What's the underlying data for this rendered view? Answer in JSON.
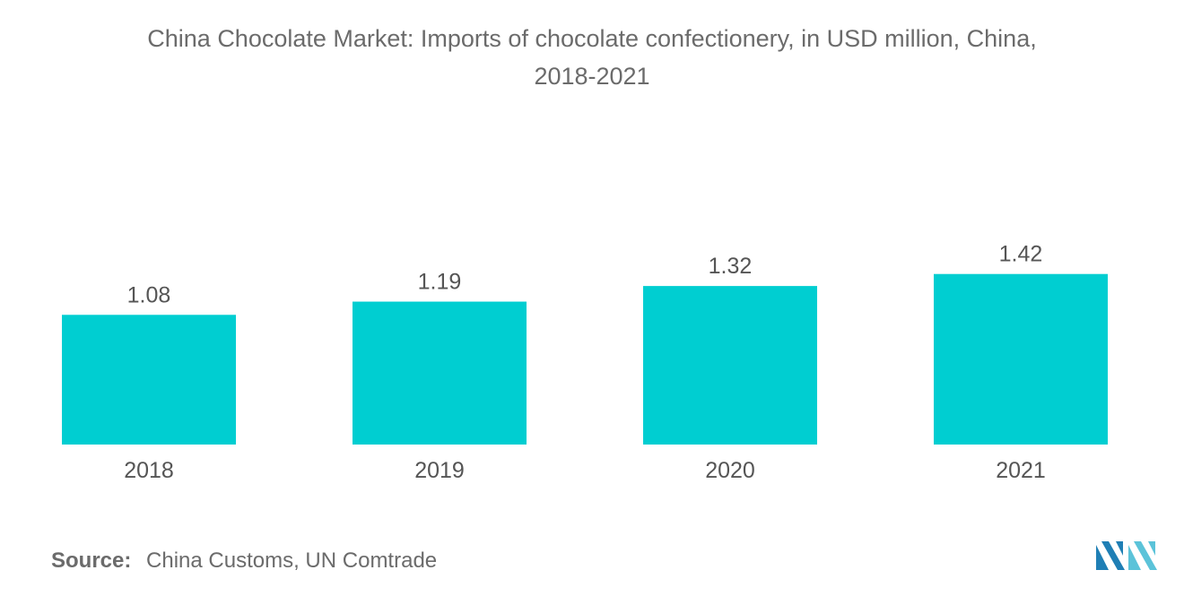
{
  "chart_data": {
    "type": "bar",
    "title": "China Chocolate Market: Imports of chocolate confectionery, in USD million, China,",
    "subtitle": "2018-2021",
    "categories": [
      "2018",
      "2019",
      "2020",
      "2021"
    ],
    "values": [
      1.08,
      1.19,
      1.32,
      1.42
    ],
    "data_labels": [
      "1.08",
      "1.19",
      "1.32",
      "1.42"
    ],
    "xlabel": "",
    "ylabel": "",
    "grid": false,
    "legend": "none",
    "bar_color": "#00ced1"
  },
  "source": {
    "label": "Source:",
    "text": "China Customs, UN Comtrade"
  },
  "logo": {
    "icon": "mordor-intelligence-logo",
    "colors": [
      "#1f7fb5",
      "#5bc3d9"
    ]
  }
}
